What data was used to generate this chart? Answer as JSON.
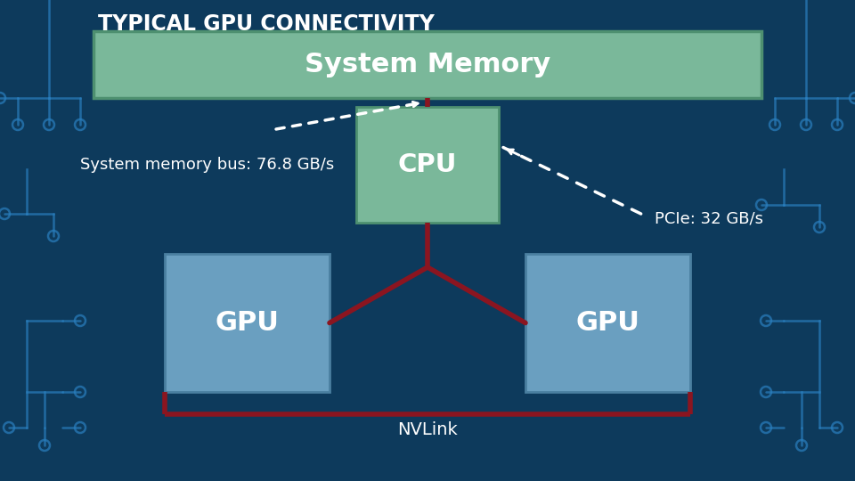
{
  "title": "TYPICAL GPU CONNECTIVITY",
  "bg_color": "#0d3a5c",
  "title_color": "#ffffff",
  "system_memory_label": "System Memory",
  "cpu_label": "CPU",
  "gpu_label": "GPU",
  "nvlink_label": "NVLink",
  "sys_bus_label": "System memory bus: 76.8 GB/s",
  "pcie_label": "PCIe: 32 GB/s",
  "system_memory_box_color": "#7ab89a",
  "system_memory_border_color": "#4e9070",
  "cpu_box_color": "#7ab89a",
  "cpu_border_color": "#4e9070",
  "gpu_box_color": "#6a9fc0",
  "gpu_border_color": "#4a7fa0",
  "line_color": "#8b1520",
  "arrow_color": "#ffffff",
  "circuit_color": "#2a7fbf",
  "title_fontsize": 17,
  "sm_fontsize": 22,
  "cpu_fontsize": 21,
  "gpu_fontsize": 22,
  "label_fontsize": 13,
  "nvlink_fontsize": 14
}
